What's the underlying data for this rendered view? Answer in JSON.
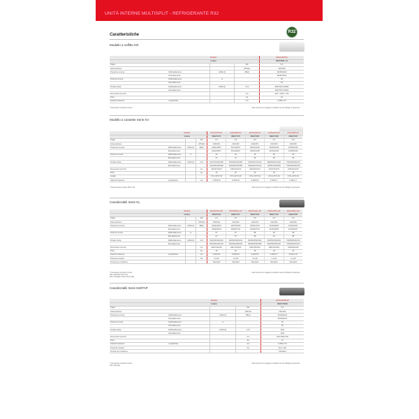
{
  "banner": {
    "title": "UNITÀ INTERNE MULTISPLIT - REFRIGERANTE R32"
  },
  "heading": "Caratteristiche",
  "badge": "R32",
  "footer_note": "I dati tecnici sono soggetti a variazioni senza obbligo di preavviso",
  "sections": [
    {
      "title": "Modello a soffitto KR",
      "model_label": "Modello",
      "code_label": "Codice",
      "models": [
        "ASEG18KRTA"
      ],
      "codes": [
        "3NGF8025_13"
      ],
      "rows": [
        {
          "label": "Taglia",
          "sub": "",
          "mode": "",
          "unit": "kW",
          "values": [
            "5.0"
          ]
        },
        {
          "label": "Alimentazione",
          "sub": "",
          "mode": "",
          "unit": "V/Ph/Hz",
          "values": [
            "230/1/50"
          ]
        },
        {
          "label": "Pressione sonora",
          "sub": "Raffreddamento",
          "mode": "H/M/L/Q",
          "unit": "dB(A)",
          "values": [
            "38/35/33/29"
          ]
        },
        {
          "label": "",
          "sub": "Riscaldamento",
          "mode": "",
          "unit": "",
          "values": [
            "38/36/33/29"
          ]
        },
        {
          "label": "Potenza sonora",
          "sub": "Raffreddamento",
          "mode": "H",
          "unit": "",
          "values": [
            "53"
          ]
        },
        {
          "label": "",
          "sub": "Riscaldamento",
          "mode": "",
          "unit": "",
          "values": [
            "53"
          ]
        },
        {
          "label": "Portata d'aria",
          "sub": "Raffreddamento",
          "mode": "H/M/L/Q",
          "unit": "m³/h",
          "values": [
            "840/760/710/650"
          ]
        },
        {
          "label": "",
          "sub": "Riscaldamento",
          "mode": "",
          "unit": "",
          "values": [
            "840/760/710/650"
          ]
        },
        {
          "label": "Dimensioni (AxLxP)",
          "sub": "",
          "mode": "",
          "unit": "mm",
          "values": [
            "230 x 1040 x 700"
          ]
        },
        {
          "label": "Peso",
          "sub": "",
          "mode": "",
          "unit": "kg",
          "values": [
            "24"
          ]
        },
        {
          "label": "Attacchi tubazioni",
          "sub": "Liquido/Gas",
          "mode": "",
          "unit": "mm",
          "values": [
            "6.35/12.70"
          ]
        }
      ],
      "notes": [
        "* Necessario comando remoto"
      ]
    },
    {
      "title": "Modello a cassette Serie KV",
      "model_label": "Modello",
      "code_label": "Codice",
      "models": [
        "AUXG07KVLA",
        "AUXG09KVLA",
        "AUXG12KVLA",
        "AUXG14KVLA",
        "AUXG18KVLA"
      ],
      "codes": [
        "3NGF7175",
        "3NGF7170",
        "3NGF7165",
        "3NGF7160",
        "3NGF7155"
      ],
      "rows": [
        {
          "label": "Taglia",
          "sub": "",
          "mode": "",
          "unit": "kW",
          "values": [
            "2.0",
            "2.5",
            "3.5",
            "4.0",
            "5.0"
          ]
        },
        {
          "label": "Alimentazione",
          "sub": "",
          "mode": "",
          "unit": "V/Ph/Hz",
          "values": [
            "230/1/50",
            "230/1/50",
            "230/1/50",
            "230/1/50",
            "230/1/50"
          ]
        },
        {
          "label": "Pressione sonora",
          "sub": "Raffreddamento",
          "mode": "H/M/L/Q",
          "unit": "dB(A)",
          "values": [
            "33/31/28/27",
            "34/31/28/27",
            "38/34/31/28",
            "39/35/32/28",
            "43/38/34/30"
          ]
        },
        {
          "label": "",
          "sub": "Riscaldamento",
          "mode": "",
          "unit": "",
          "values": [
            "34/32/28/27",
            "34/32/28/27",
            "38/34/31/28",
            "40/36/34/30",
            "43/38/34/30"
          ]
        },
        {
          "label": "Potenza sonora",
          "sub": "Raffreddamento",
          "mode": "H",
          "unit": "",
          "values": [
            "46",
            "46",
            "49",
            "50",
            "56"
          ]
        },
        {
          "label": "",
          "sub": "Riscaldamento",
          "mode": "",
          "unit": "",
          "values": [
            "47",
            "47",
            "49",
            "50",
            "56"
          ]
        },
        {
          "label": "Portata d'aria",
          "sub": "Raffreddamento",
          "mode": "H/M/L/Q",
          "unit": "m³/h",
          "values": [
            "510/470/430/380",
            "540/490/440/380",
            "630/540/470/410",
            "680/590/510/440",
            "750/630/540/470"
          ]
        },
        {
          "label": "",
          "sub": "Riscaldamento",
          "mode": "",
          "unit": "",
          "values": [
            "540/490/440/380",
            "540/490/440/380",
            "630/540/470/410",
            "700/610/540/450",
            "750/630/540/470"
          ]
        },
        {
          "label": "Dimensioni (AxLxP)",
          "sub": "",
          "mode": "",
          "unit": "mm",
          "values": [
            "245x570x570",
            "245x570x570",
            "245x570x570",
            "245x570x570",
            "245x570x570"
          ]
        },
        {
          "label": "Peso",
          "sub": "",
          "mode": "",
          "unit": "kg",
          "values": [
            "15",
            "15",
            "15",
            "15",
            "15"
          ]
        },
        {
          "label": "Griglia",
          "sub": "",
          "mode": "",
          "unit": "",
          "values": [
            "UTG-UFYF-W",
            "UTG-UFYF-W",
            "UTG-UFYF-W",
            "UTG-UFYF-W",
            "UTG-UFYF-W"
          ]
        },
        {
          "label": "Attacchi tubazioni",
          "sub": "Liquido/Gas",
          "mode": "",
          "unit": "mm",
          "values": [
            "6.35/9.52",
            "6.35/9.52",
            "6.35/9.52",
            "6.35/12.7",
            "6.35/12.7"
          ]
        }
      ],
      "notes": [
        "* Telecomando a parete (RCC-23)"
      ]
    },
    {
      "title": "Canalizzabili Serie KL",
      "model_label": "Modello",
      "code_label": "Codice",
      "models": [
        "ARXG07KLLAP",
        "ARXG09KLLAP",
        "ARXG12KLLAP",
        "ARXG14KLLAP",
        "ARXG18KLLAP"
      ],
      "codes": [
        "3NGF7134",
        "3NGF7117",
        "3NGF7118",
        "3NGF7119",
        "3NGF7122"
      ],
      "rows": [
        {
          "label": "Taglia",
          "sub": "",
          "mode": "",
          "unit": "kW",
          "values": [
            "2.0",
            "2.5",
            "3.5",
            "4.0",
            "5.0"
          ]
        },
        {
          "label": "Alimentazione",
          "sub": "",
          "mode": "",
          "unit": "V/Ph/Hz",
          "values": [
            "230/1/50",
            "230/1/50",
            "230/1/50",
            "230/1/50",
            "230/1/50"
          ]
        },
        {
          "label": "Pressione sonora",
          "sub": "Raffreddamento",
          "mode": "H/M/L/Q",
          "unit": "dB(A)",
          "values": [
            "29/26/25/24",
            "29/27/26/25",
            "29/26/27/24",
            "32/30/28/25",
            "32/30/29/27"
          ]
        },
        {
          "label": "",
          "sub": "Riscaldamento",
          "mode": "",
          "unit": "",
          "values": [
            "29/28/25/24",
            "29/28/27/24",
            "29/28/27/24",
            "32/30/28/25",
            "32/30/29/27"
          ]
        },
        {
          "label": "Potenza sonora",
          "sub": "Raffreddamento",
          "mode": "H",
          "unit": "",
          "values": [
            "57",
            "57",
            "58",
            "60",
            "58"
          ]
        },
        {
          "label": "",
          "sub": "Riscaldamento",
          "mode": "",
          "unit": "",
          "values": [
            "57",
            "57",
            "58",
            "60",
            "58"
          ]
        },
        {
          "label": "Portata d'aria",
          "sub": "Raffreddamento",
          "mode": "H/M/L/Q",
          "unit": "m³/h",
          "values": [
            "530/460/420/440",
            "600/530/490/410",
            "650/600/550/460",
            "650/550/500/440",
            "760/690/620/700"
          ]
        },
        {
          "label": "",
          "sub": "Riscaldamento",
          "mode": "",
          "unit": "",
          "values": [
            "530/460/420/400",
            "600/530/490/450",
            "650/600/550/480",
            "650/550/500/440",
            "760/690/620/700"
          ]
        },
        {
          "label": "Dimensioni (AxLxP)",
          "sub": "",
          "mode": "",
          "unit": "mm",
          "values": [
            "198x700x620",
            "198x700x620",
            "198x700x620",
            "198x700x620",
            "198x900x620"
          ]
        },
        {
          "label": "Peso",
          "sub": "",
          "mode": "",
          "unit": "kg",
          "values": [
            "18",
            "18",
            "18",
            "18",
            "20"
          ]
        },
        {
          "label": "Attacchi tubazioni",
          "sub": "Liquido/Gas",
          "mode": "",
          "unit": "mm",
          "values": [
            "6.35/9.52",
            "6.35/9.52",
            "6.35/9.52",
            "6.35/12.7",
            "6.35/12.70"
          ]
        },
        {
          "label": "Pressione statica",
          "sub": "",
          "mode": "",
          "unit": "Pa",
          "values": [
            "0 a 90",
            "0 a 90",
            "0 a 90",
            "0 a 90",
            "0 a 90"
          ]
        },
        {
          "label": "Pompa per condensa",
          "sub": "",
          "mode": "",
          "unit": "",
          "values": [
            "Standard",
            "Standard",
            "Standard",
            "Standard",
            "Standard"
          ]
        }
      ],
      "notes": [
        "* Necessario comando remoto",
        "Filtro (M) 2(E) (Serie KL)",
        "Filtro a flangia esclusi (Serie KM)"
      ]
    },
    {
      "title": "Canalizzabili Serie KM/TAP",
      "model_label": "Modello",
      "code_label": "Codice",
      "models": [
        "ARXG18KMTAP"
      ],
      "codes": [
        "3NGF7052B"
      ],
      "rows": [
        {
          "label": "Taglia",
          "sub": "",
          "mode": "",
          "unit": "kW",
          "values": [
            "5.0"
          ]
        },
        {
          "label": "Alimentazione",
          "sub": "",
          "mode": "",
          "unit": "V/Ph/Hz",
          "values": [
            "230/1/50"
          ]
        },
        {
          "label": "Pressione sonora",
          "sub": "Raffreddamento",
          "mode": "H/M/L/Q",
          "unit": "dB(A)",
          "values": [
            "31/28/26/24"
          ]
        },
        {
          "label": "",
          "sub": "Riscaldamento",
          "mode": "",
          "unit": "",
          "values": [
            "32/29/26/24"
          ]
        },
        {
          "label": "Potenza sonora",
          "sub": "Raffreddamento",
          "mode": "H",
          "unit": "",
          "values": [
            "54"
          ]
        },
        {
          "label": "",
          "sub": "Riscaldamento",
          "mode": "",
          "unit": "",
          "values": [
            "55"
          ]
        },
        {
          "label": "Portata d'aria",
          "sub": "Raffreddamento",
          "mode": "H/M/L/Q",
          "unit": "m³/h",
          "values": [
            "1150"
          ]
        },
        {
          "label": "",
          "sub": "Riscaldamento",
          "mode": "",
          "unit": "",
          "values": [
            "1150"
          ]
        },
        {
          "label": "Dimensioni (AxLxP)",
          "sub": "",
          "mode": "",
          "unit": "mm",
          "values": [
            "240x1000x700"
          ]
        },
        {
          "label": "Peso",
          "sub": "",
          "mode": "",
          "unit": "kg",
          "values": [
            "31"
          ]
        },
        {
          "label": "Attacchi tubazioni",
          "sub": "Liquido/Gas",
          "mode": "",
          "unit": "mm",
          "values": [
            "6.35/12.70"
          ]
        },
        {
          "label": "Pressione statica",
          "sub": "",
          "mode": "",
          "unit": "Pa",
          "values": [
            "30 to 150"
          ]
        },
        {
          "label": "Pompa per condensa",
          "sub": "",
          "mode": "",
          "unit": "",
          "values": [
            "Standard"
          ]
        }
      ],
      "notes": [
        "* Necessario comando remoto",
        "Filtro (M) 2(E)"
      ]
    }
  ]
}
